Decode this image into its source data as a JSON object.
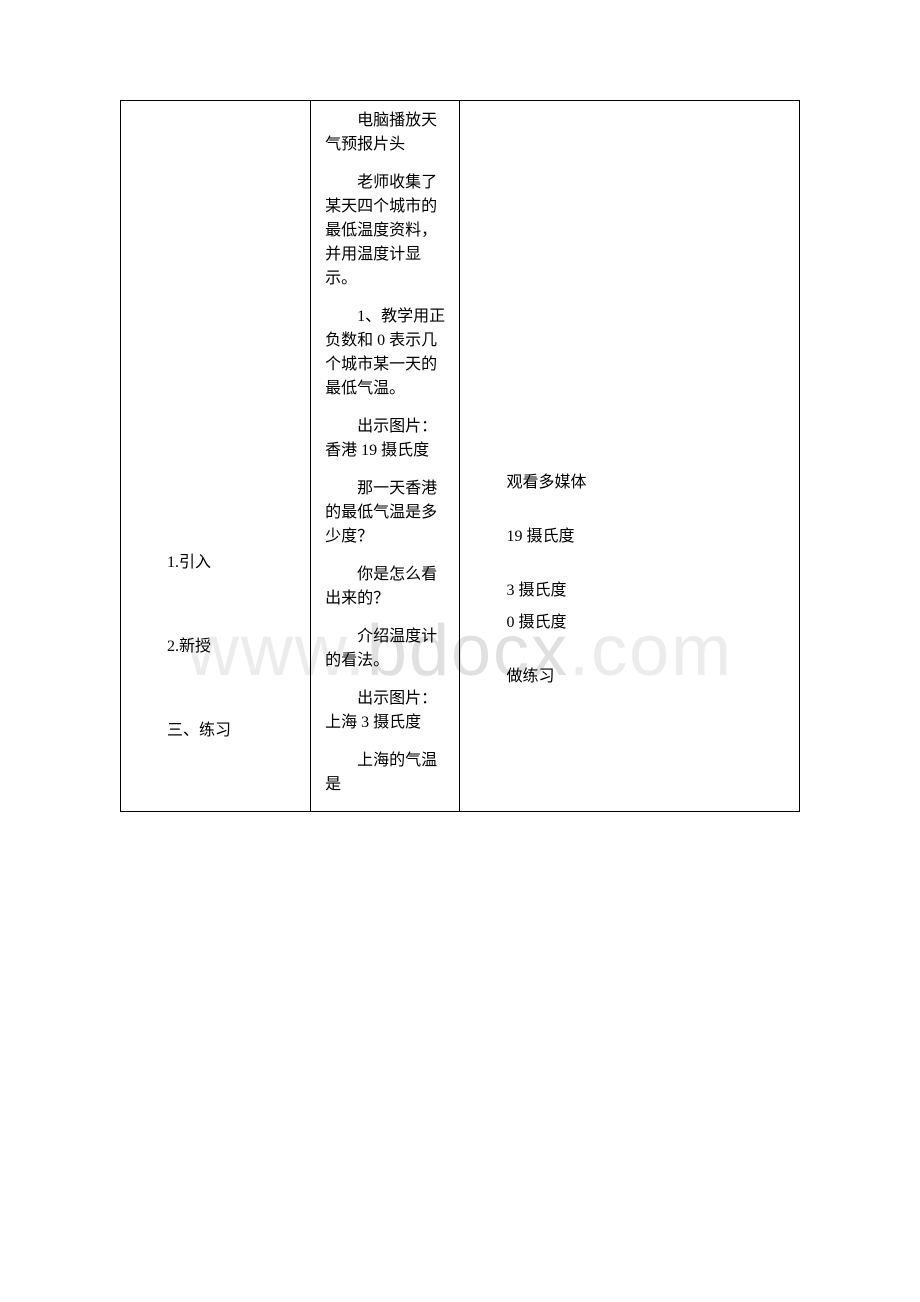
{
  "watermark": {
    "prefix": "www.",
    "domain": "bdocx",
    "suffix": ".com",
    "font_size": 72,
    "color_light": "#ececec",
    "color_main": "#e0e0e0"
  },
  "table": {
    "border_color": "#000000",
    "background_color": "#ffffff",
    "font_size": 16,
    "text_color": "#000000",
    "columns": [
      {
        "width_pct": 28,
        "name": "stage"
      },
      {
        "width_pct": 22,
        "name": "teacher_activity"
      },
      {
        "width_pct": 50,
        "name": "student_activity"
      }
    ]
  },
  "col1": {
    "items": [
      "1.引入",
      "2.新授",
      "三、练习"
    ]
  },
  "col2": {
    "paragraphs": [
      "电脑播放天气预报片头",
      "老师收集了某天四个城市的最低温度资料，并用温度计显示。",
      "1、教学用正负数和 0 表示几个城市某一天的最低气温。",
      "出示图片：香港 19 摄氏度",
      "那一天香港的最低气温是多少度？",
      "你是怎么看出来的？",
      "介绍温度计的看法。",
      "出示图片：上海 3 摄氏度",
      "上海的气温是"
    ]
  },
  "col3": {
    "items": [
      "观看多媒体",
      "19 摄氏度",
      "3 摄氏度",
      "0 摄氏度",
      "做练习"
    ]
  }
}
